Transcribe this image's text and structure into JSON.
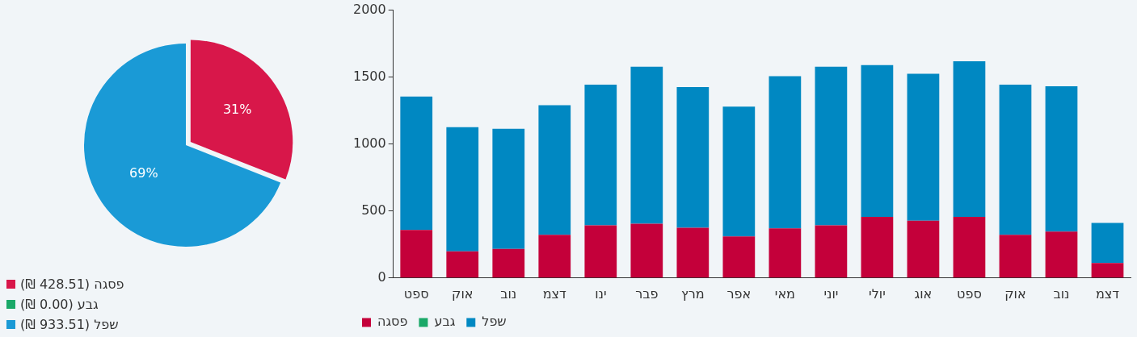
{
  "chart_data": [
    {
      "type": "pie",
      "categories": [
        "פסגה (428.51 ₪)",
        "גבע (0.00 ₪)",
        "שפל (933.51 ₪)"
      ],
      "values": [
        31,
        0,
        69
      ],
      "colors": [
        "#d8174a",
        "#1aa868",
        "#1a9ad6"
      ],
      "value_labels": [
        "31%",
        null,
        "69%"
      ],
      "legend": "bottom left"
    },
    {
      "type": "bar",
      "stacked": true,
      "categories": [
        "ספט",
        "אוק",
        "נוב",
        "דצמ",
        "ינו",
        "פבר",
        "מרץ",
        "אפר",
        "מאי",
        "יוני",
        "יולי",
        "אוג",
        "ספט",
        "אוק",
        "נוב",
        "דצמ"
      ],
      "series": [
        {
          "name": "פסגה",
          "color": "#c4003a",
          "values": [
            358,
            199,
            217,
            323,
            393,
            405,
            375,
            311,
            370,
            393,
            457,
            428,
            457,
            323,
            346,
            111
          ]
        },
        {
          "name": "גבע",
          "color": "#1aa868",
          "values": [
            0,
            0,
            0,
            0,
            0,
            0,
            0,
            0,
            0,
            0,
            0,
            0,
            0,
            0,
            0,
            0
          ]
        },
        {
          "name": "שפל",
          "color": "#0088c2",
          "values": [
            997,
            927,
            897,
            967,
            1050,
            1173,
            1050,
            968,
            1137,
            1185,
            1133,
            1097,
            1162,
            1120,
            1085,
            300
          ]
        }
      ],
      "ylim": [
        0,
        2000
      ],
      "yticks": [
        0,
        500,
        1000,
        1500,
        2000
      ],
      "grid": false,
      "legend": "bottom left"
    }
  ]
}
